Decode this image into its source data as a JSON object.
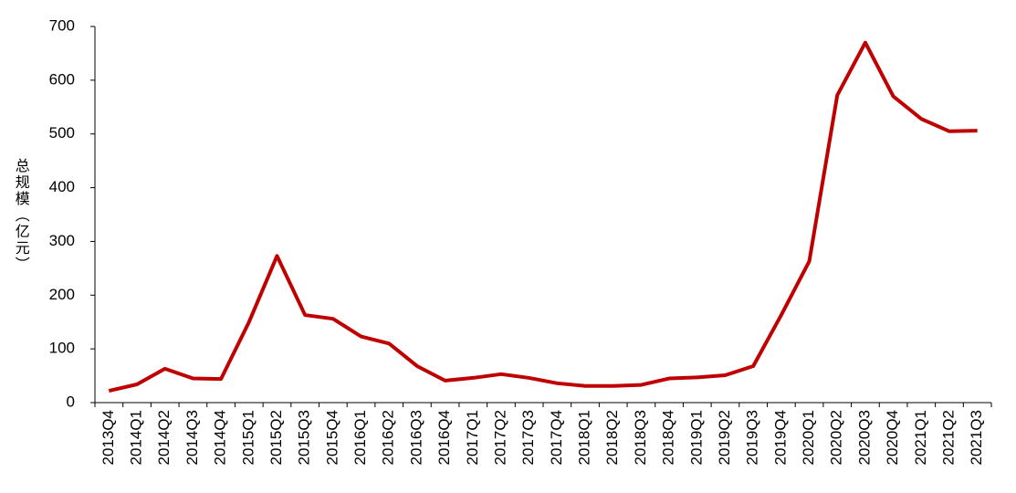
{
  "chart_data": {
    "type": "line",
    "y_label": "总规模（亿元）",
    "categories": [
      "2013Q4",
      "2014Q1",
      "2014Q2",
      "2014Q3",
      "2014Q4",
      "2015Q1",
      "2015Q2",
      "2015Q3",
      "2015Q4",
      "2016Q1",
      "2016Q2",
      "2016Q3",
      "2016Q4",
      "2017Q1",
      "2017Q2",
      "2017Q3",
      "2017Q4",
      "2018Q1",
      "2018Q2",
      "2018Q3",
      "2018Q4",
      "2019Q1",
      "2019Q2",
      "2019Q3",
      "2019Q4",
      "2020Q1",
      "2020Q2",
      "2020Q3",
      "2020Q4",
      "2021Q1",
      "2021Q2",
      "2021Q3"
    ],
    "values": [
      22,
      34,
      63,
      45,
      44,
      150,
      273,
      163,
      156,
      123,
      110,
      68,
      41,
      46,
      53,
      46,
      36,
      31,
      31,
      33,
      45,
      47,
      51,
      68,
      163,
      263,
      572,
      670,
      570,
      528,
      505,
      506
    ],
    "color": "#c00000",
    "ylim": [
      0,
      700
    ],
    "yticks": [
      0,
      100,
      200,
      300,
      400,
      500,
      600,
      700
    ]
  }
}
